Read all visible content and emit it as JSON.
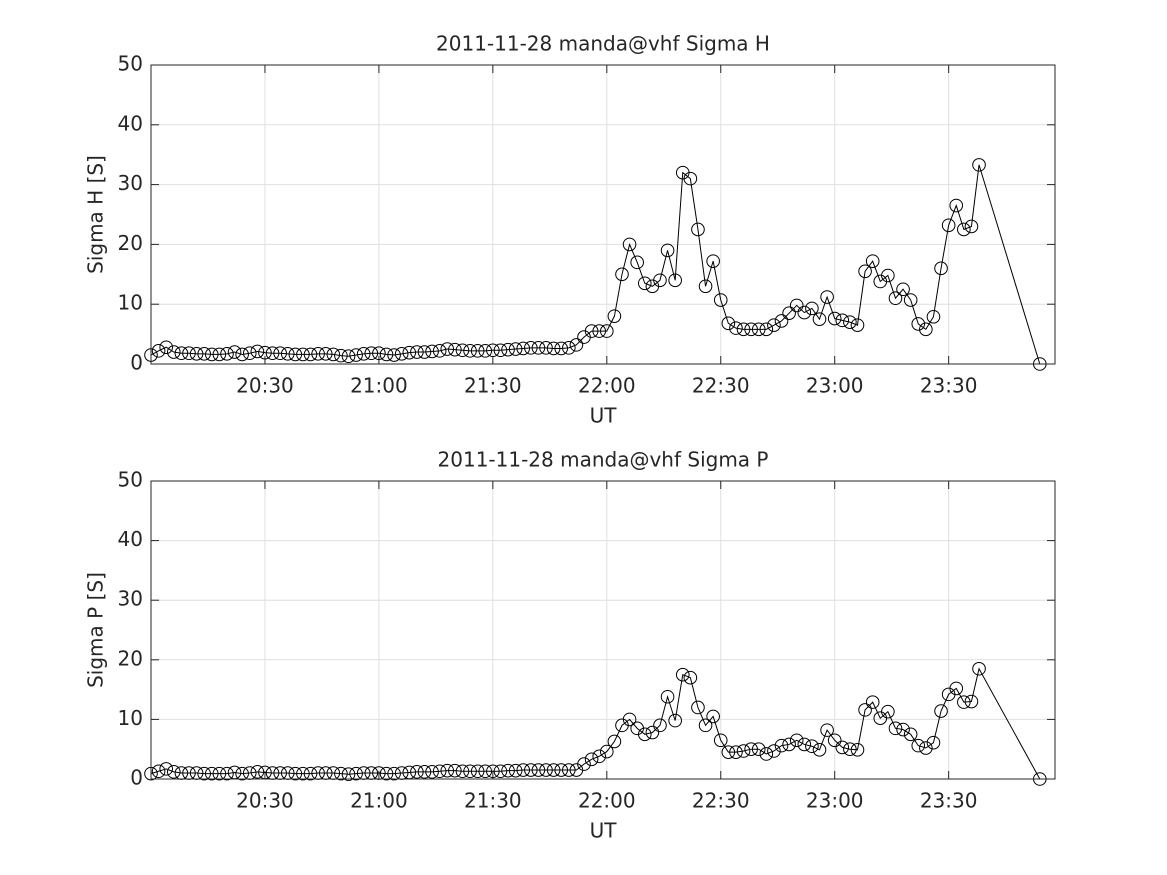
{
  "chart_data": [
    {
      "type": "line",
      "title": "2011-11-28  manda@vhf Sigma H",
      "xlabel": "UT",
      "ylabel": "Sigma H [S]",
      "color": "#000000",
      "grid": true,
      "marker": "circle",
      "x": [
        "20:00",
        "20:02",
        "20:04",
        "20:06",
        "20:08",
        "20:10",
        "20:12",
        "20:14",
        "20:16",
        "20:18",
        "20:20",
        "20:22",
        "20:24",
        "20:26",
        "20:28",
        "20:30",
        "20:32",
        "20:34",
        "20:36",
        "20:38",
        "20:40",
        "20:42",
        "20:44",
        "20:46",
        "20:48",
        "20:50",
        "20:52",
        "20:54",
        "20:56",
        "20:58",
        "21:00",
        "21:02",
        "21:04",
        "21:06",
        "21:08",
        "21:10",
        "21:12",
        "21:14",
        "21:16",
        "21:18",
        "21:20",
        "21:22",
        "21:24",
        "21:26",
        "21:28",
        "21:30",
        "21:32",
        "21:34",
        "21:36",
        "21:38",
        "21:40",
        "21:42",
        "21:44",
        "21:46",
        "21:48",
        "21:50",
        "21:52",
        "21:54",
        "21:56",
        "21:58",
        "22:00",
        "22:02",
        "22:04",
        "22:06",
        "22:08",
        "22:10",
        "22:12",
        "22:14",
        "22:16",
        "22:18",
        "22:20",
        "22:22",
        "22:24",
        "22:26",
        "22:28",
        "22:30",
        "22:32",
        "22:34",
        "22:36",
        "22:38",
        "22:40",
        "22:42",
        "22:44",
        "22:46",
        "22:48",
        "22:50",
        "22:52",
        "22:54",
        "22:56",
        "22:58",
        "23:00",
        "23:02",
        "23:04",
        "23:06",
        "23:08",
        "23:10",
        "23:12",
        "23:14",
        "23:16",
        "23:18",
        "23:20",
        "23:22",
        "23:24",
        "23:26",
        "23:28",
        "23:30",
        "23:32",
        "23:34",
        "23:36",
        "23:38",
        "23:54"
      ],
      "values": [
        1.5,
        2.2,
        2.8,
        2.0,
        1.8,
        1.8,
        1.7,
        1.7,
        1.6,
        1.6,
        1.7,
        2.0,
        1.6,
        1.8,
        2.1,
        1.9,
        1.8,
        1.8,
        1.7,
        1.6,
        1.6,
        1.6,
        1.7,
        1.7,
        1.6,
        1.4,
        1.3,
        1.5,
        1.7,
        1.8,
        1.8,
        1.6,
        1.5,
        1.7,
        1.9,
        2.0,
        2.0,
        2.1,
        2.2,
        2.5,
        2.4,
        2.3,
        2.2,
        2.2,
        2.2,
        2.3,
        2.3,
        2.4,
        2.5,
        2.6,
        2.7,
        2.7,
        2.7,
        2.6,
        2.6,
        2.7,
        3.2,
        4.5,
        5.5,
        5.5,
        5.5,
        8,
        15,
        20,
        17,
        13.5,
        13,
        14,
        19,
        14,
        32,
        31,
        22.5,
        13,
        17.2,
        10.7,
        6.8,
        6,
        5.8,
        5.8,
        5.8,
        5.8,
        6.5,
        7.2,
        8.5,
        9.8,
        8.6,
        9.3,
        7.5,
        11.2,
        7.6,
        7.3,
        7,
        6.5,
        15.5,
        17.2,
        13.8,
        14.8,
        11,
        12.5,
        10.7,
        6.7,
        5.8,
        7.9,
        16,
        23.2,
        26.5,
        22.5,
        23,
        33.3,
        0
      ],
      "xlim": [
        "20:00",
        "23:58"
      ],
      "xticks": [
        "20:30",
        "21:00",
        "21:30",
        "22:00",
        "22:30",
        "23:00",
        "23:30"
      ],
      "ylim": [
        0,
        50
      ],
      "yticks": [
        0,
        10,
        20,
        30,
        40,
        50
      ]
    },
    {
      "type": "line",
      "title": "2011-11-28  manda@vhf Sigma P",
      "xlabel": "UT",
      "ylabel": "Sigma P [S]",
      "color": "#000000",
      "grid": true,
      "marker": "circle",
      "x": [
        "20:00",
        "20:02",
        "20:04",
        "20:06",
        "20:08",
        "20:10",
        "20:12",
        "20:14",
        "20:16",
        "20:18",
        "20:20",
        "20:22",
        "20:24",
        "20:26",
        "20:28",
        "20:30",
        "20:32",
        "20:34",
        "20:36",
        "20:38",
        "20:40",
        "20:42",
        "20:44",
        "20:46",
        "20:48",
        "20:50",
        "20:52",
        "20:54",
        "20:56",
        "20:58",
        "21:00",
        "21:02",
        "21:04",
        "21:06",
        "21:08",
        "21:10",
        "21:12",
        "21:14",
        "21:16",
        "21:18",
        "21:20",
        "21:22",
        "21:24",
        "21:26",
        "21:28",
        "21:30",
        "21:32",
        "21:34",
        "21:36",
        "21:38",
        "21:40",
        "21:42",
        "21:44",
        "21:46",
        "21:48",
        "21:50",
        "21:52",
        "21:54",
        "21:56",
        "21:58",
        "22:00",
        "22:02",
        "22:04",
        "22:06",
        "22:08",
        "22:10",
        "22:12",
        "22:14",
        "22:16",
        "22:18",
        "22:20",
        "22:22",
        "22:24",
        "22:26",
        "22:28",
        "22:30",
        "22:32",
        "22:34",
        "22:36",
        "22:38",
        "22:40",
        "22:42",
        "22:44",
        "22:46",
        "22:48",
        "22:50",
        "22:52",
        "22:54",
        "22:56",
        "22:58",
        "23:00",
        "23:02",
        "23:04",
        "23:06",
        "23:08",
        "23:10",
        "23:12",
        "23:14",
        "23:16",
        "23:18",
        "23:20",
        "23:22",
        "23:24",
        "23:26",
        "23:28",
        "23:30",
        "23:32",
        "23:34",
        "23:36",
        "23:38",
        "23:54"
      ],
      "values": [
        0.9,
        1.3,
        1.7,
        1.2,
        1.0,
        1.0,
        1.0,
        0.9,
        0.9,
        0.9,
        0.9,
        1.1,
        0.9,
        1.0,
        1.2,
        1.1,
        1.0,
        1.0,
        1.0,
        0.9,
        0.9,
        0.9,
        1.0,
        1.0,
        1.0,
        0.9,
        0.8,
        0.9,
        1.0,
        1.0,
        1.0,
        0.9,
        0.9,
        1.0,
        1.1,
        1.2,
        1.2,
        1.2,
        1.3,
        1.4,
        1.4,
        1.3,
        1.3,
        1.3,
        1.3,
        1.3,
        1.3,
        1.4,
        1.4,
        1.5,
        1.5,
        1.5,
        1.5,
        1.5,
        1.5,
        1.5,
        1.5,
        2.5,
        3.3,
        3.8,
        4.6,
        6.3,
        9,
        10,
        8.5,
        7.5,
        7.8,
        9,
        13.8,
        9.8,
        17.5,
        17,
        12,
        9,
        10.5,
        6.5,
        4.5,
        4.5,
        4.7,
        5,
        5,
        4.2,
        4.7,
        5.6,
        5.8,
        6.5,
        5.8,
        5.5,
        4.9,
        8.2,
        6.5,
        5.3,
        5,
        4.9,
        11.6,
        12.9,
        10.2,
        11.3,
        8.5,
        8.3,
        7.5,
        5.6,
        5.2,
        6.1,
        11.4,
        14.2,
        15.2,
        12.9,
        13,
        18.5,
        0
      ],
      "xlim": [
        "20:00",
        "23:58"
      ],
      "xticks": [
        "20:30",
        "21:00",
        "21:30",
        "22:00",
        "22:30",
        "23:00",
        "23:30"
      ],
      "ylim": [
        0,
        50
      ],
      "yticks": [
        0,
        10,
        20,
        30,
        40,
        50
      ]
    }
  ]
}
